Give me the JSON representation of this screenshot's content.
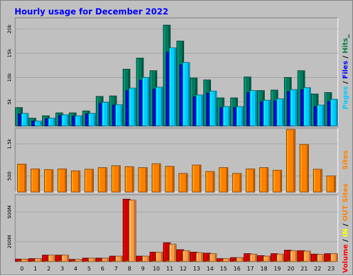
{
  "chart_data": {
    "type": "bar",
    "title": "Hourly usage for December 2022",
    "categories": [
      "0",
      "1",
      "2",
      "3",
      "4",
      "5",
      "6",
      "7",
      "8",
      "9",
      "10",
      "11",
      "12",
      "13",
      "14",
      "15",
      "16",
      "17",
      "18",
      "19",
      "20",
      "21",
      "22",
      "23"
    ],
    "panels": [
      {
        "name": "pages-files-hits",
        "ylim": [
          0,
          22000
        ],
        "yticks": [
          {
            "value": 5000,
            "label": "5k"
          },
          {
            "value": 10000,
            "label": "10k"
          },
          {
            "value": 15000,
            "label": "15k"
          },
          {
            "value": 20000,
            "label": "20k"
          }
        ],
        "side_label": [
          {
            "text": "Pages",
            "color": "#00ccff"
          },
          {
            "text": " / ",
            "color": "#000000"
          },
          {
            "text": "Files",
            "color": "#0000ff"
          },
          {
            "text": " / ",
            "color": "#000000"
          },
          {
            "text": "Hits",
            "color": "#008040"
          },
          {
            "text": "_",
            "color": "#000000"
          }
        ],
        "series": [
          {
            "color": "#007a5e",
            "values": [
              3800,
              1600,
              2100,
              2700,
              2700,
              3100,
              6100,
              6200,
              11700,
              14000,
              11400,
              20800,
              17500,
              9900,
              9500,
              5800,
              5800,
              10100,
              7300,
              7400,
              10000,
              11400,
              6600,
              6900
            ]
          },
          {
            "color": "#0000cc",
            "values": [
              2500,
              1000,
              1500,
              2200,
              2000,
              2500,
              4700,
              4300,
              7300,
              9500,
              7600,
              15200,
              12600,
              6000,
              6800,
              3800,
              3800,
              6900,
              5000,
              5200,
              7100,
              7500,
              4000,
              5100
            ]
          },
          {
            "color": "#00ccff",
            "values": [
              2600,
              1000,
              1600,
              2300,
              2100,
              2600,
              4900,
              4400,
              7800,
              10000,
              8000,
              16100,
              13100,
              6400,
              7200,
              4000,
              4000,
              7300,
              5300,
              5600,
              7500,
              7900,
              4300,
              5500
            ]
          }
        ]
      },
      {
        "name": "sites",
        "ylim": [
          0,
          1950
        ],
        "yticks": [
          {
            "value": 500,
            "label": "500"
          },
          {
            "value": 1500,
            "label": "1.5k"
          }
        ],
        "side_label": [
          {
            "text": "Sites",
            "color": "#ff8000"
          }
        ],
        "series": [
          {
            "color": "#ff8000",
            "values": [
              870,
              720,
              700,
              720,
              660,
              710,
              760,
              820,
              790,
              760,
              880,
              800,
              580,
              840,
              640,
              760,
              580,
              720,
              760,
              680,
              1950,
              1480,
              710,
              500
            ]
          }
        ]
      },
      {
        "name": "volume",
        "ylim": [
          0,
          660
        ],
        "yticks": [
          {
            "value": 200,
            "label": "200M"
          },
          {
            "value": 500,
            "label": "500M"
          }
        ],
        "side_label": [
          {
            "text": "Volume",
            "color": "#ff0000"
          },
          {
            "text": " / ",
            "color": "#000000"
          },
          {
            "text": "IN",
            "color": "#ffff00"
          },
          {
            "text": " / ",
            "color": "#000000"
          },
          {
            "text": "OUT",
            "color": "#ff8000"
          },
          {
            "text": " ",
            "color": "#000000"
          },
          {
            "text": "Sites",
            "color": "#ff8000"
          }
        ],
        "series": [
          {
            "color": "#cc0000",
            "values": [
              25,
              30,
              65,
              65,
              22,
              35,
              35,
              55,
              630,
              55,
              95,
              190,
              120,
              95,
              85,
              30,
              40,
              80,
              60,
              80,
              115,
              110,
              75,
              80
            ]
          },
          {
            "color": "#ffff00",
            "values": [
              2,
              2,
              3,
              3,
              2,
              2,
              2,
              3,
              5,
              3,
              4,
              6,
              4,
              3,
              3,
              2,
              2,
              3,
              3,
              3,
              4,
              4,
              3,
              3
            ]
          },
          {
            "color": "#ff9944",
            "values": [
              25,
              30,
              65,
              65,
              22,
              35,
              35,
              55,
              620,
              55,
              95,
              175,
              110,
              90,
              80,
              30,
              40,
              75,
              55,
              75,
              110,
              105,
              72,
              80
            ]
          }
        ]
      }
    ]
  }
}
